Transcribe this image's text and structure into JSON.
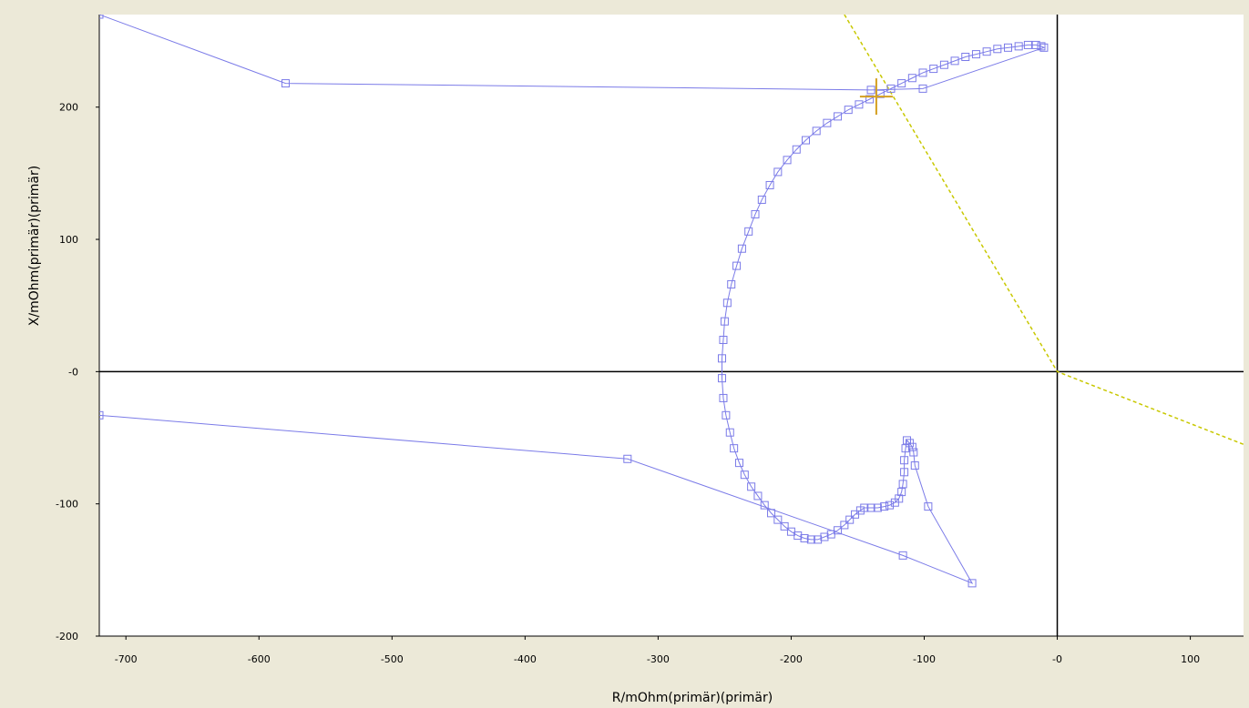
{
  "chart_data": {
    "type": "scatter",
    "title": "",
    "xlabel": "R/mOhm(primär)(primär)",
    "ylabel": "X/mOhm(primär)(primär)",
    "xlim": [
      -720,
      140
    ],
    "ylim": [
      -200,
      270
    ],
    "x_ticks": [
      -700,
      -600,
      -500,
      -400,
      -300,
      -200,
      -100,
      0,
      100
    ],
    "x_tick_labels": [
      "-700",
      "-600",
      "-500",
      "-400",
      "-300",
      "-200",
      "-100",
      "-0",
      "100"
    ],
    "y_ticks": [
      -200,
      -100,
      0,
      100,
      200
    ],
    "y_tick_labels": [
      "-200",
      "-100",
      "-0",
      "100",
      "200"
    ],
    "grid": false,
    "legend": "none",
    "colors": {
      "background": "#ece9d8",
      "plot_background": "#ffffff",
      "trajectory": "#7b7be8",
      "characteristic": "#c8c800",
      "cursor": "#d4a020",
      "axes": "#000000"
    },
    "series": [
      {
        "role": "impedance-trajectory",
        "line": "solid",
        "marker": "open-square",
        "points": [
          [
            -720,
            -33
          ],
          [
            -323,
            -66
          ],
          [
            -116,
            -139
          ],
          [
            -64,
            -160
          ],
          [
            -97,
            -102
          ],
          [
            -107,
            -71
          ],
          [
            -108,
            -61
          ],
          [
            -109,
            -57
          ],
          [
            -111,
            -54
          ],
          [
            -113,
            -52
          ],
          [
            -114,
            -58
          ],
          [
            -115,
            -67
          ],
          [
            -115,
            -76
          ],
          [
            -116,
            -85
          ],
          [
            -117,
            -91
          ],
          [
            -119,
            -96
          ],
          [
            -122,
            -99
          ],
          [
            -126,
            -101
          ],
          [
            -130,
            -102
          ],
          [
            -135,
            -103
          ],
          [
            -140,
            -103
          ],
          [
            -145,
            -103
          ],
          [
            -148,
            -105
          ],
          [
            -152,
            -108
          ],
          [
            -156,
            -112
          ],
          [
            -160,
            -116
          ],
          [
            -165,
            -120
          ],
          [
            -170,
            -123
          ],
          [
            -175,
            -125
          ],
          [
            -180,
            -127
          ],
          [
            -185,
            -127
          ],
          [
            -190,
            -126
          ],
          [
            -195,
            -124
          ],
          [
            -200,
            -121
          ],
          [
            -205,
            -117
          ],
          [
            -210,
            -112
          ],
          [
            -215,
            -107
          ],
          [
            -220,
            -101
          ],
          [
            -225,
            -94
          ],
          [
            -230,
            -87
          ],
          [
            -235,
            -78
          ],
          [
            -239,
            -69
          ],
          [
            -243,
            -58
          ],
          [
            -246,
            -46
          ],
          [
            -249,
            -33
          ],
          [
            -251,
            -20
          ],
          [
            -252,
            -5
          ],
          [
            -252,
            10
          ],
          [
            -251,
            24
          ],
          [
            -250,
            38
          ],
          [
            -248,
            52
          ],
          [
            -245,
            66
          ],
          [
            -241,
            80
          ],
          [
            -237,
            93
          ],
          [
            -232,
            106
          ],
          [
            -227,
            119
          ],
          [
            -222,
            130
          ],
          [
            -216,
            141
          ],
          [
            -210,
            151
          ],
          [
            -203,
            160
          ],
          [
            -196,
            168
          ],
          [
            -189,
            175
          ],
          [
            -181,
            182
          ],
          [
            -173,
            188
          ],
          [
            -165,
            193
          ],
          [
            -157,
            198
          ],
          [
            -149,
            202
          ],
          [
            -141,
            206
          ],
          [
            -133,
            210
          ],
          [
            -125,
            214
          ],
          [
            -117,
            218
          ],
          [
            -109,
            222
          ],
          [
            -101,
            226
          ],
          [
            -93,
            229
          ],
          [
            -85,
            232
          ],
          [
            -77,
            235
          ],
          [
            -69,
            238
          ],
          [
            -61,
            240
          ],
          [
            -53,
            242
          ],
          [
            -45,
            244
          ],
          [
            -37,
            245
          ],
          [
            -29,
            246
          ],
          [
            -22,
            247
          ],
          [
            -16,
            247
          ],
          [
            -12,
            246
          ],
          [
            -10,
            245
          ],
          [
            -101,
            214
          ],
          [
            -140,
            213
          ],
          [
            -580,
            218
          ],
          [
            -720,
            270
          ]
        ]
      },
      {
        "role": "characteristic-line",
        "line": "dashed",
        "marker": "none",
        "points": [
          [
            -160,
            270
          ],
          [
            0,
            0
          ],
          [
            140,
            -55
          ]
        ]
      }
    ],
    "cursor": [
      -136,
      208
    ]
  }
}
